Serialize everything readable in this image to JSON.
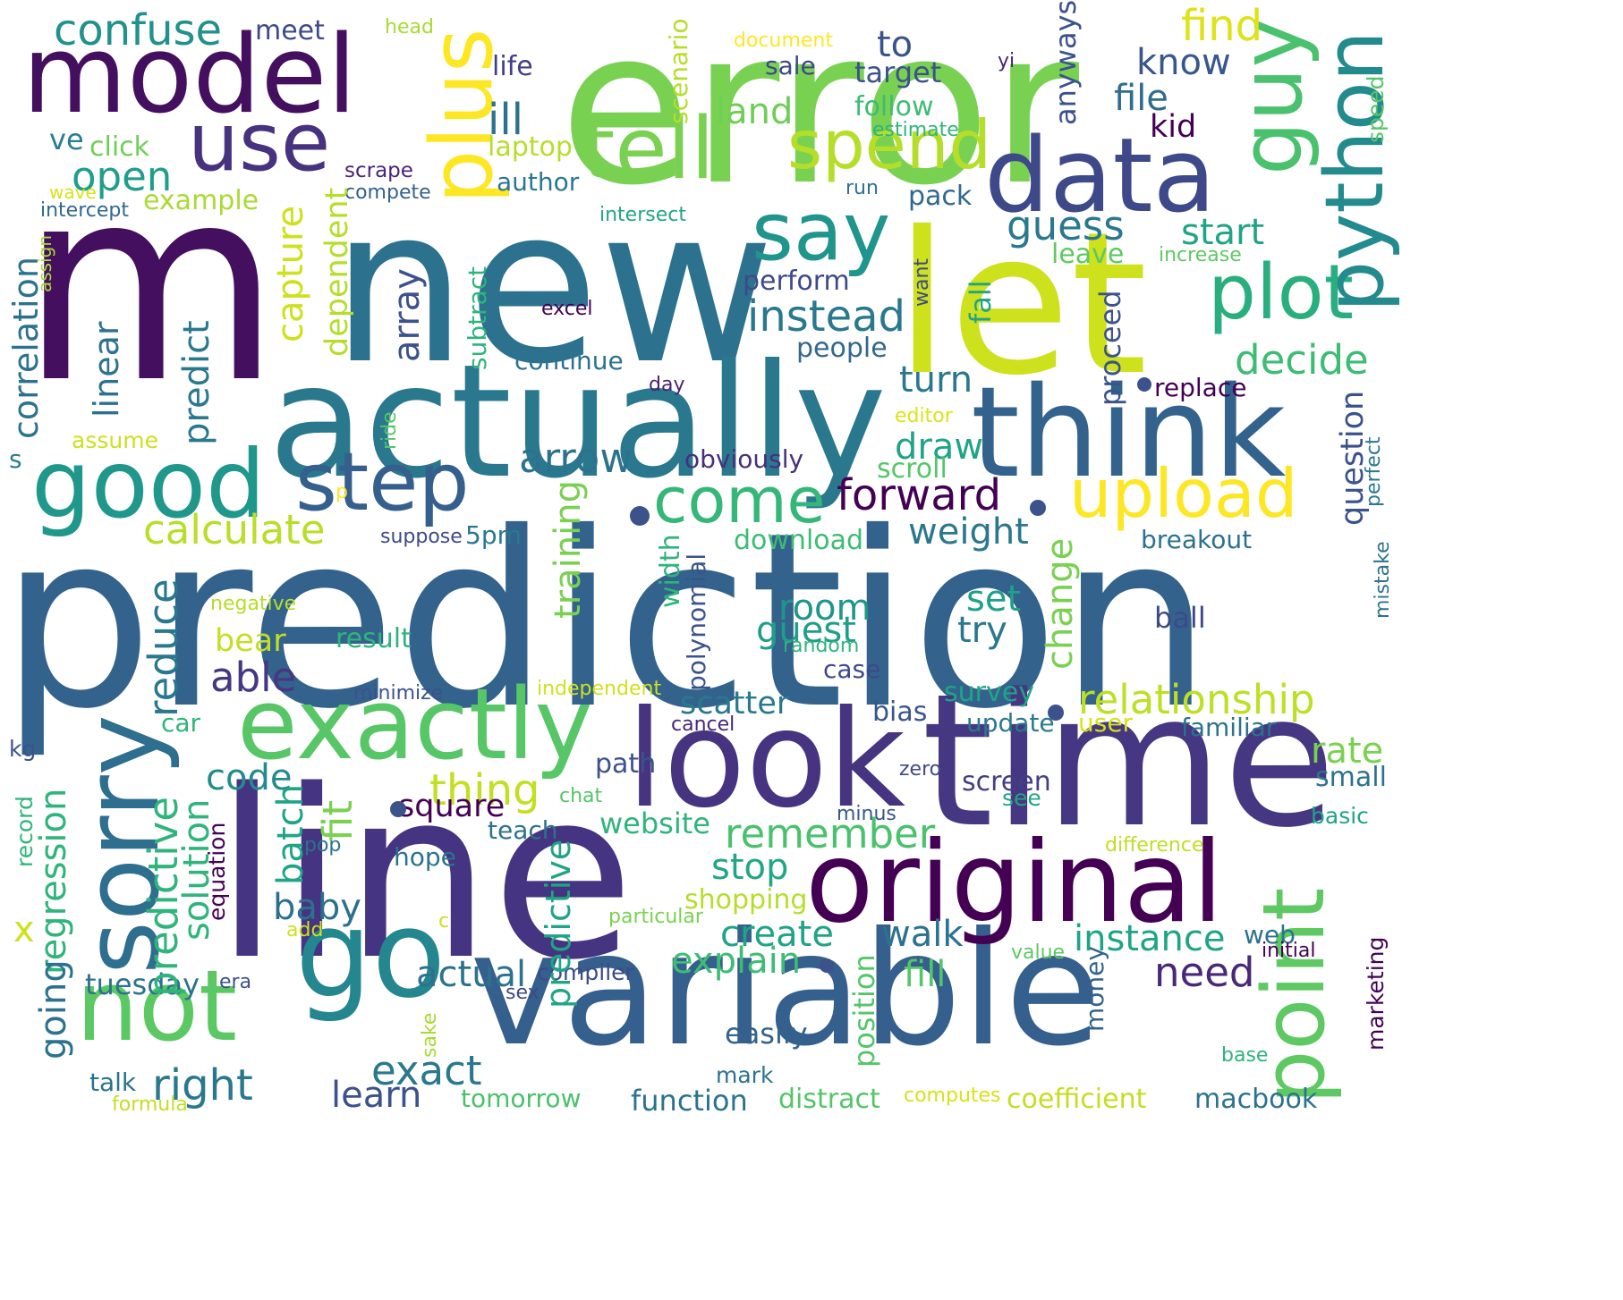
{
  "cloud": {
    "background": "#ffffff",
    "words": [
      {
        "text": "prediction",
        "color": "#33638d"
      },
      {
        "text": "m",
        "color": "#440f5e"
      },
      {
        "text": "error",
        "color": "#79d152"
      },
      {
        "text": "new",
        "color": "#2c728e"
      },
      {
        "text": "line",
        "color": "#453481"
      },
      {
        "text": "time",
        "color": "#453781"
      },
      {
        "text": "variable",
        "color": "#355f8d"
      },
      {
        "text": "actually",
        "color": "#2a788e"
      },
      {
        "text": "let",
        "color": "#cde11d"
      },
      {
        "text": "think",
        "color": "#33628d"
      },
      {
        "text": "look",
        "color": "#463480"
      },
      {
        "text": "original",
        "color": "#440154"
      },
      {
        "text": "model",
        "color": "#440f5e"
      },
      {
        "text": "data",
        "color": "#3e4989"
      },
      {
        "text": "go",
        "color": "#24868e"
      },
      {
        "text": "good",
        "color": "#1f988b"
      },
      {
        "text": "exactly",
        "color": "#56c667"
      },
      {
        "text": "not",
        "color": "#5cc863"
      },
      {
        "text": "sorry",
        "color": "#2e6e8e"
      },
      {
        "text": "say",
        "color": "#1f958b"
      },
      {
        "text": "step",
        "color": "#355f8d"
      },
      {
        "text": "tell",
        "color": "#7ad151"
      },
      {
        "text": "use",
        "color": "#46327e"
      },
      {
        "text": "plus",
        "color": "#fde725"
      },
      {
        "text": "guy",
        "color": "#4ac16d"
      },
      {
        "text": "plot",
        "color": "#29af7f"
      },
      {
        "text": "python",
        "color": "#238a8d"
      },
      {
        "text": "point",
        "color": "#5ec962"
      },
      {
        "text": "upload",
        "color": "#fde725"
      },
      {
        "text": "spend",
        "color": "#b5de2b"
      },
      {
        "text": "come",
        "color": "#35b779"
      },
      {
        "text": "forward",
        "color": "#440154"
      },
      {
        "text": "confuse",
        "color": "#21918c"
      },
      {
        "text": "find",
        "color": "#dde318"
      },
      {
        "text": "know",
        "color": "#39568c"
      },
      {
        "text": "to",
        "color": "#3b528b"
      },
      {
        "text": "land",
        "color": "#6ece58"
      },
      {
        "text": "file",
        "color": "#2f6c8e"
      },
      {
        "text": "kid",
        "color": "#440154"
      },
      {
        "text": "ill",
        "color": "#2c728e"
      },
      {
        "text": "open",
        "color": "#1f9e89"
      },
      {
        "text": "ve",
        "color": "#287d8e"
      },
      {
        "text": "life",
        "color": "#433e85"
      },
      {
        "text": "meet",
        "color": "#3e4989"
      },
      {
        "text": "head",
        "color": "#a8db34"
      },
      {
        "text": "document",
        "color": "#fde725"
      },
      {
        "text": "follow",
        "color": "#3dbc74"
      },
      {
        "text": "sale",
        "color": "#3e4989"
      },
      {
        "text": "target",
        "color": "#3b528b"
      },
      {
        "text": "estimate",
        "color": "#2fb47c"
      },
      {
        "text": "yi",
        "color": "#482475"
      },
      {
        "text": "click",
        "color": "#6ece58"
      },
      {
        "text": "laptop",
        "color": "#b5de2b"
      },
      {
        "text": "scrape",
        "color": "#482576"
      },
      {
        "text": "compete",
        "color": "#33638d"
      },
      {
        "text": "author",
        "color": "#2a788e"
      },
      {
        "text": "run",
        "color": "#2c728e"
      },
      {
        "text": "wave",
        "color": "#d8e219"
      },
      {
        "text": "intercept",
        "color": "#31688e"
      },
      {
        "text": "example",
        "color": "#a8db34"
      },
      {
        "text": "intersect",
        "color": "#21a685"
      },
      {
        "text": "pack",
        "color": "#31688e"
      },
      {
        "text": "guess",
        "color": "#2a788e"
      },
      {
        "text": "start",
        "color": "#20a486"
      },
      {
        "text": "leave",
        "color": "#5ec962"
      },
      {
        "text": "increase",
        "color": "#5ec962"
      },
      {
        "text": "instead",
        "color": "#2a788e"
      },
      {
        "text": "perform",
        "color": "#3e4989"
      },
      {
        "text": "excel",
        "color": "#440154"
      },
      {
        "text": "decide",
        "color": "#3dbc74"
      },
      {
        "text": "people",
        "color": "#31688e"
      },
      {
        "text": "continue",
        "color": "#2c728e"
      },
      {
        "text": "replace",
        "color": "#440154"
      },
      {
        "text": "day",
        "color": "#482475"
      },
      {
        "text": "turn",
        "color": "#2a788e"
      },
      {
        "text": "editor",
        "color": "#dde318"
      },
      {
        "text": "arrow",
        "color": "#2c728e"
      },
      {
        "text": "obviously",
        "color": "#472f7d"
      },
      {
        "text": "draw",
        "color": "#20a486"
      },
      {
        "text": "scroll",
        "color": "#54c568"
      },
      {
        "text": "calculate",
        "color": "#b8de29"
      },
      {
        "text": "assume",
        "color": "#cde11d"
      },
      {
        "text": "s",
        "color": "#287d8e"
      },
      {
        "text": "p",
        "color": "#fde725"
      },
      {
        "text": "suppose",
        "color": "#3e4989"
      },
      {
        "text": "5pm",
        "color": "#2a788e"
      },
      {
        "text": "weight",
        "color": "#2a788e"
      },
      {
        "text": "download",
        "color": "#3dbc74"
      },
      {
        "text": "breakout",
        "color": "#2c728e"
      },
      {
        "text": "set",
        "color": "#1fa088"
      },
      {
        "text": "room",
        "color": "#1f968b"
      },
      {
        "text": "guest",
        "color": "#1f9e89"
      },
      {
        "text": "try",
        "color": "#2a788e"
      },
      {
        "text": "ball",
        "color": "#3e4989"
      },
      {
        "text": "negative",
        "color": "#b5de2b"
      },
      {
        "text": "random",
        "color": "#2fb47c"
      },
      {
        "text": "bear",
        "color": "#c2df23"
      },
      {
        "text": "result",
        "color": "#2fb47c"
      },
      {
        "text": "able",
        "color": "#453781"
      },
      {
        "text": "case",
        "color": "#3e4989"
      },
      {
        "text": "minimize",
        "color": "#3b528b"
      },
      {
        "text": "independent",
        "color": "#d0e11c"
      },
      {
        "text": "survey",
        "color": "#20a486"
      },
      {
        "text": "relationship",
        "color": "#bddf26"
      },
      {
        "text": "scatter",
        "color": "#2a788e"
      },
      {
        "text": "bias",
        "color": "#39568c"
      },
      {
        "text": "update",
        "color": "#2a788e"
      },
      {
        "text": "user",
        "color": "#d8e219"
      },
      {
        "text": "familiar",
        "color": "#2c728e"
      },
      {
        "text": "car",
        "color": "#2fb47c"
      },
      {
        "text": "cancel",
        "color": "#482576"
      },
      {
        "text": "rate",
        "color": "#7ad151"
      },
      {
        "text": "small",
        "color": "#2c728e"
      },
      {
        "text": "kg",
        "color": "#3b528b"
      },
      {
        "text": "path",
        "color": "#3b528b"
      },
      {
        "text": "zero",
        "color": "#3e4989"
      },
      {
        "text": "screen",
        "color": "#433e85"
      },
      {
        "text": "see",
        "color": "#21a685"
      },
      {
        "text": "code",
        "color": "#238a8d"
      },
      {
        "text": "thing",
        "color": "#c2df23"
      },
      {
        "text": "square",
        "color": "#440154"
      },
      {
        "text": "chat",
        "color": "#54c568"
      },
      {
        "text": "minus",
        "color": "#39568c"
      },
      {
        "text": "basic",
        "color": "#20a486"
      },
      {
        "text": "website",
        "color": "#2fb47c"
      },
      {
        "text": "teach",
        "color": "#2c728e"
      },
      {
        "text": "remember",
        "color": "#4ac16d"
      },
      {
        "text": "difference",
        "color": "#bddf26"
      },
      {
        "text": "hope",
        "color": "#2c728e"
      },
      {
        "text": "pop",
        "color": "#2c728e"
      },
      {
        "text": "stop",
        "color": "#21a685"
      },
      {
        "text": "baby",
        "color": "#2d708e"
      },
      {
        "text": "shopping",
        "color": "#b5de2b"
      },
      {
        "text": "x",
        "color": "#cde11d"
      },
      {
        "text": "add",
        "color": "#cde11d"
      },
      {
        "text": "c",
        "color": "#cde11d"
      },
      {
        "text": "particular",
        "color": "#7ad151"
      },
      {
        "text": "create",
        "color": "#20a486"
      },
      {
        "text": "walk",
        "color": "#2c728e"
      },
      {
        "text": "instance",
        "color": "#20a486"
      },
      {
        "text": "web",
        "color": "#2c728e"
      },
      {
        "text": "explain",
        "color": "#3dbc74"
      },
      {
        "text": "fill",
        "color": "#54c568"
      },
      {
        "text": "need",
        "color": "#482878"
      },
      {
        "text": "value",
        "color": "#5ec962"
      },
      {
        "text": "initial",
        "color": "#440154"
      },
      {
        "text": "actual",
        "color": "#2c728e"
      },
      {
        "text": "compiler",
        "color": "#3e4989"
      },
      {
        "text": "tuesday",
        "color": "#2c728e"
      },
      {
        "text": "era",
        "color": "#3b528b"
      },
      {
        "text": "sex",
        "color": "#3e4989"
      },
      {
        "text": "exact",
        "color": "#2a788e"
      },
      {
        "text": "easily",
        "color": "#33638d"
      },
      {
        "text": "right",
        "color": "#2a788e"
      },
      {
        "text": "talk",
        "color": "#2c728e"
      },
      {
        "text": "learn",
        "color": "#3b528b"
      },
      {
        "text": "mark",
        "color": "#2c728e"
      },
      {
        "text": "tomorrow",
        "color": "#4ac16d"
      },
      {
        "text": "function",
        "color": "#2c728e"
      },
      {
        "text": "distract",
        "color": "#54c568"
      },
      {
        "text": "computes",
        "color": "#d8e219"
      },
      {
        "text": "coefficient",
        "color": "#c2df23"
      },
      {
        "text": "macbook",
        "color": "#2c728e"
      },
      {
        "text": "base",
        "color": "#2fb47c"
      },
      {
        "text": "formula",
        "color": "#c2df23"
      },
      {
        "text": "scenario",
        "color": "#b5de2b"
      },
      {
        "text": "anyways",
        "color": "#3b528b"
      },
      {
        "text": "speed",
        "color": "#54c568"
      },
      {
        "text": "correlation",
        "color": "#2c728e"
      },
      {
        "text": "assign",
        "color": "#a8db34"
      },
      {
        "text": "linear",
        "color": "#2c728e"
      },
      {
        "text": "predict",
        "color": "#2a788e"
      },
      {
        "text": "capture",
        "color": "#cde11d"
      },
      {
        "text": "dependent",
        "color": "#b5de2b"
      },
      {
        "text": "array",
        "color": "#3b528b"
      },
      {
        "text": "subtract",
        "color": "#2fb47c"
      },
      {
        "text": "fall",
        "color": "#20a486"
      },
      {
        "text": "want",
        "color": "#3e4989"
      },
      {
        "text": "proceed",
        "color": "#3b528b"
      },
      {
        "text": "question",
        "color": "#3b528b"
      },
      {
        "text": "perfect",
        "color": "#2a788e"
      },
      {
        "text": "mistake",
        "color": "#2c728e"
      },
      {
        "text": "ride",
        "color": "#54c568"
      },
      {
        "text": "training",
        "color": "#7ad151"
      },
      {
        "text": "width",
        "color": "#2fb47c"
      },
      {
        "text": "polynomial",
        "color": "#3b528b"
      },
      {
        "text": "change",
        "color": "#7ad151"
      },
      {
        "text": "reduce",
        "color": "#2a788e"
      },
      {
        "text": "predictive",
        "color": "#2fb47c"
      },
      {
        "text": "regression",
        "color": "#2fb47c"
      },
      {
        "text": "going",
        "color": "#2c728e"
      },
      {
        "text": "record",
        "color": "#2fb47c"
      },
      {
        "text": "solution",
        "color": "#2fb47c"
      },
      {
        "text": "equation",
        "color": "#440154"
      },
      {
        "text": "batch",
        "color": "#20a486"
      },
      {
        "text": "fit",
        "color": "#7ad151"
      },
      {
        "text": "position",
        "color": "#54c568"
      },
      {
        "text": "money",
        "color": "#33638d"
      },
      {
        "text": "sake",
        "color": "#a8db34"
      },
      {
        "text": "marketing",
        "color": "#440154"
      },
      {
        "text": "predictive",
        "color": "#20a486"
      }
    ]
  }
}
